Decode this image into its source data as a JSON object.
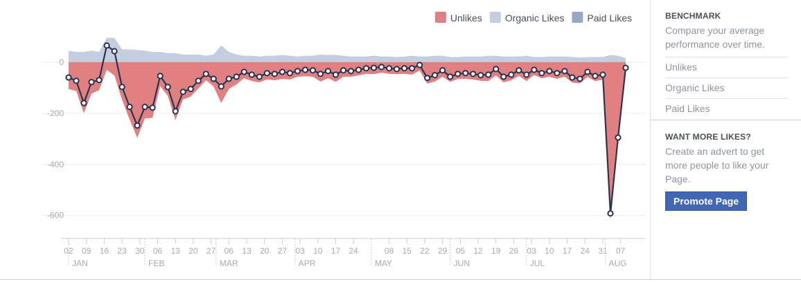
{
  "chart_data": {
    "type": "area",
    "series": [
      {
        "name": "Unlikes",
        "color": "#e08080",
        "values": [
          -105,
          -113,
          -200,
          -123,
          -110,
          -30,
          -52,
          -147,
          -225,
          -296,
          -220,
          -218,
          -94,
          -132,
          -227,
          -146,
          -135,
          -103,
          -71,
          -95,
          -160,
          -105,
          -87,
          -63,
          -74,
          -79,
          -68,
          -71,
          -66,
          -68,
          -57,
          -55,
          -57,
          -76,
          -63,
          -77,
          -57,
          -57,
          -52,
          -46,
          -47,
          -41,
          -46,
          -47,
          -46,
          -49,
          -33,
          -84,
          -76,
          -57,
          -77,
          -66,
          -65,
          -68,
          -73,
          -74,
          -52,
          -79,
          -71,
          -54,
          -74,
          -50,
          -63,
          -57,
          -65,
          -57,
          -80,
          -83,
          -58,
          -74,
          -69,
          -620,
          -320,
          -37
        ]
      },
      {
        "name": "Organic Likes",
        "color": "#c5cde0",
        "values": [
          45,
          40,
          40,
          45,
          40,
          95,
          95,
          50,
          50,
          48,
          45,
          40,
          40,
          35,
          35,
          30,
          30,
          30,
          25,
          30,
          65,
          40,
          30,
          25,
          25,
          22,
          25,
          25,
          28,
          25,
          22,
          25,
          25,
          30,
          28,
          28,
          25,
          22,
          22,
          22,
          25,
          22,
          22,
          20,
          22,
          25,
          22,
          22,
          25,
          25,
          20,
          20,
          22,
          22,
          22,
          25,
          25,
          22,
          22,
          22,
          25,
          20,
          20,
          22,
          22,
          22,
          20,
          18,
          20,
          20,
          20,
          28,
          25,
          15
        ]
      },
      {
        "name": "Paid Likes",
        "color": "#9aa8c8",
        "values": [
          0,
          0,
          0,
          0,
          0,
          0,
          0,
          0,
          0,
          0,
          0,
          0,
          0,
          0,
          0,
          0,
          0,
          0,
          0,
          0,
          0,
          0,
          0,
          0,
          0,
          0,
          0,
          0,
          0,
          0,
          0,
          0,
          0,
          0,
          0,
          0,
          0,
          0,
          0,
          0,
          0,
          0,
          0,
          0,
          0,
          0,
          0,
          0,
          0,
          0,
          0,
          0,
          0,
          0,
          0,
          0,
          0,
          0,
          0,
          0,
          0,
          0,
          0,
          0,
          0,
          0,
          0,
          0,
          0,
          0,
          0,
          0,
          0,
          0
        ]
      }
    ],
    "line": {
      "color": "#2b3350",
      "values": [
        -60,
        -73,
        -160,
        -78,
        -70,
        65,
        43,
        -97,
        -175,
        -248,
        -175,
        -178,
        -54,
        -97,
        -192,
        -116,
        -105,
        -73,
        -46,
        -65,
        -95,
        -65,
        -57,
        -38,
        -49,
        -57,
        -43,
        -46,
        -38,
        -43,
        -35,
        -30,
        -32,
        -46,
        -35,
        -49,
        -32,
        -35,
        -30,
        -24,
        -22,
        -19,
        -24,
        -27,
        -24,
        -24,
        -11,
        -62,
        -51,
        -32,
        -57,
        -46,
        -43,
        -46,
        -51,
        -49,
        -27,
        -57,
        -49,
        -32,
        -49,
        -30,
        -43,
        -35,
        -43,
        -35,
        -60,
        -65,
        -38,
        -54,
        -49,
        -592,
        -295,
        -22
      ]
    },
    "xlim": [
      0,
      219
    ],
    "xticks": [
      {
        "value": 0,
        "label": "02"
      },
      {
        "value": 7,
        "label": "09"
      },
      {
        "value": 14,
        "label": "16"
      },
      {
        "value": 21,
        "label": "23"
      },
      {
        "value": 28,
        "label": "30"
      },
      {
        "value": 35,
        "label": "06"
      },
      {
        "value": 42,
        "label": "13"
      },
      {
        "value": 49,
        "label": "20"
      },
      {
        "value": 56,
        "label": "27"
      },
      {
        "value": 63,
        "label": "06"
      },
      {
        "value": 70,
        "label": "13"
      },
      {
        "value": 77,
        "label": "20"
      },
      {
        "value": 84,
        "label": "27"
      },
      {
        "value": 91,
        "label": "03"
      },
      {
        "value": 98,
        "label": "10"
      },
      {
        "value": 105,
        "label": "17"
      },
      {
        "value": 112,
        "label": "24"
      },
      {
        "value": 126,
        "label": "08"
      },
      {
        "value": 133,
        "label": "15"
      },
      {
        "value": 140,
        "label": "22"
      },
      {
        "value": 147,
        "label": "29"
      },
      {
        "value": 154,
        "label": "05"
      },
      {
        "value": 161,
        "label": "12"
      },
      {
        "value": 168,
        "label": "19"
      },
      {
        "value": 175,
        "label": "26"
      },
      {
        "value": 182,
        "label": "03"
      },
      {
        "value": 189,
        "label": "10"
      },
      {
        "value": 196,
        "label": "17"
      },
      {
        "value": 203,
        "label": "24"
      },
      {
        "value": 210,
        "label": "31"
      },
      {
        "value": 217,
        "label": "07"
      }
    ],
    "months": [
      {
        "value": 0,
        "label": "JAN"
      },
      {
        "value": 30,
        "label": "FEB"
      },
      {
        "value": 58,
        "label": "MAR"
      },
      {
        "value": 89,
        "label": "APR"
      },
      {
        "value": 119,
        "label": "MAY"
      },
      {
        "value": 150,
        "label": "JUN"
      },
      {
        "value": 180,
        "label": "JUL"
      },
      {
        "value": 211,
        "label": "AUG"
      }
    ],
    "ylim": [
      -690,
      135
    ],
    "yticks": [
      0,
      -200,
      -400,
      -600
    ],
    "grid": true,
    "legend": "top-right"
  },
  "sidebar": {
    "benchmark": {
      "title": "BENCHMARK",
      "text": "Compare your average performance over time.",
      "items": [
        "Unlikes",
        "Organic Likes",
        "Paid Likes"
      ]
    },
    "promo": {
      "title": "WANT MORE LIKES?",
      "text": "Create an advert to get more people to like your Page.",
      "button": "Promote Page"
    }
  }
}
